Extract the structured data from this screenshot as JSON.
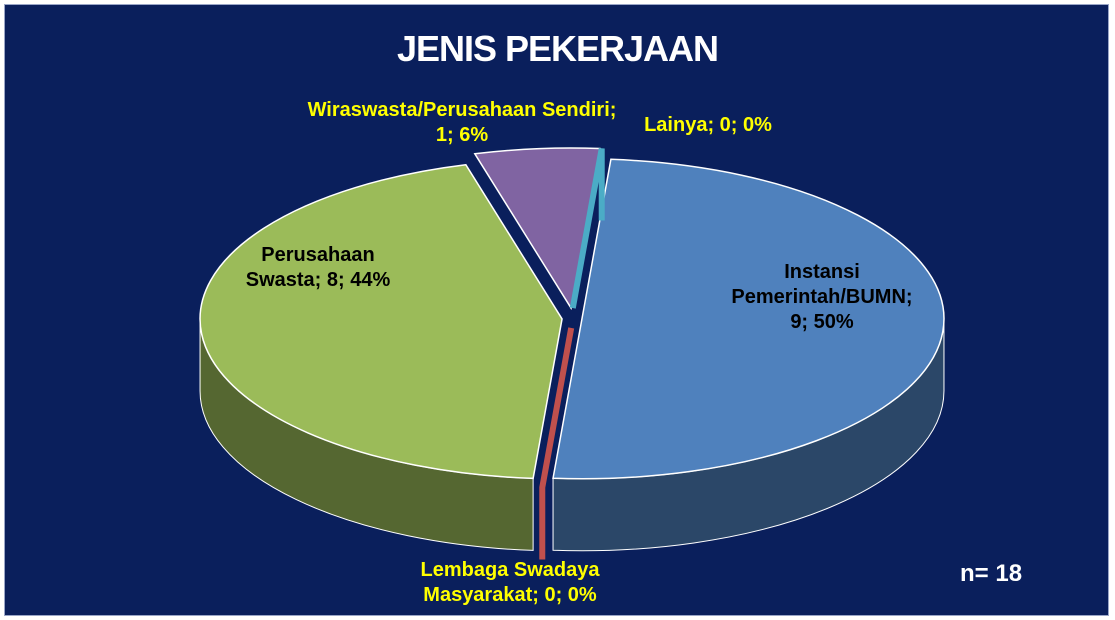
{
  "chart_data": {
    "type": "pie3d",
    "title": "JENIS PEKERJAAN",
    "values": [
      9,
      0,
      8,
      1,
      0
    ],
    "value_labels": [
      "Instansi Pemerintah/BUMN; 9; 50%",
      "Lembaga Swadaya Masyarakat; 0; 0%",
      "Perusahaan Swasta; 8; 44%",
      "Wiraswasta/Perusahaan Sendiri; 1; 6%",
      "Lainya; 0; 0%"
    ],
    "colors": [
      "#4f81bd",
      "#c0504d",
      "#9bbb59",
      "#8064a2",
      "#4bacc6"
    ],
    "note": "n= 18"
  }
}
